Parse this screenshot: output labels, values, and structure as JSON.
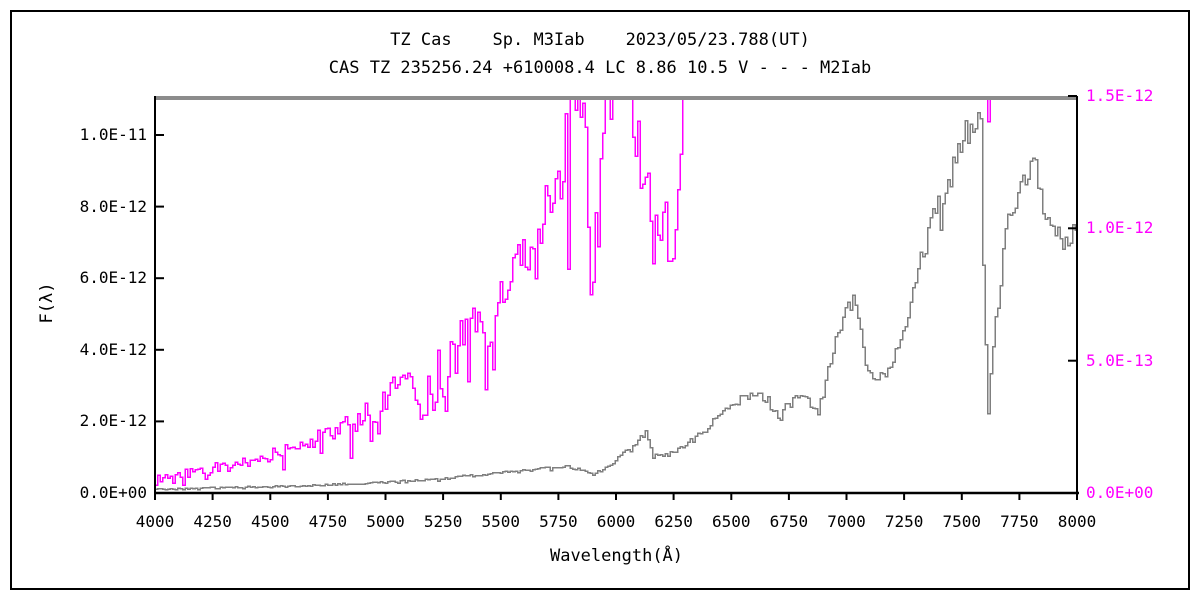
{
  "header": {
    "title": "TZ Cas    Sp. M3Iab    2023/05/23.788(UT)",
    "subtitle": "CAS TZ 235256.24 +610008.4 LC 8.86 10.5 V - - - M2Iab"
  },
  "colors": {
    "background": "#ffffff",
    "frame": "#000000",
    "top_border": "#8c8c8c",
    "axis": "#000000",
    "observed": "#7f7f7f",
    "comparison": "#ff00ff"
  },
  "axes": {
    "x": {
      "title": "Wavelength(Å)",
      "min": 4000,
      "max": 8000,
      "tick_values": [
        4000,
        4250,
        4500,
        4750,
        5000,
        5250,
        5500,
        5750,
        6000,
        6250,
        6500,
        6750,
        7000,
        7250,
        7500,
        7750,
        8000
      ],
      "tick_labels": [
        "4000",
        "4250",
        "4500",
        "4750",
        "5000",
        "5250",
        "5500",
        "5750",
        "6000",
        "6250",
        "6500",
        "6750",
        "7000",
        "7250",
        "7500",
        "7750",
        "8000"
      ]
    },
    "y_left": {
      "title": "F(λ)",
      "tick_values_e12": [
        0,
        2,
        4,
        6,
        8,
        10
      ],
      "tick_labels": [
        "0.0E+00",
        "2.0E-12",
        "4.0E-12",
        "6.0E-12",
        "8.0E-12",
        "1.0E-11"
      ],
      "top_value_e12": 11.09,
      "color": "#000000"
    },
    "y_right": {
      "tick_values_e12": [
        0,
        0.5,
        1.0,
        1.5
      ],
      "tick_labels": [
        "0.0E+00",
        "5.0E-13",
        "1.0E-12",
        "1.5E-12"
      ],
      "top_value_e12": 1.5,
      "color": "#ff00ff"
    }
  },
  "chart_data": {
    "type": "line",
    "title": "TZ Cas Sp. M3Iab 2023/05/23.788(UT)",
    "xlabel": "Wavelength(Å)",
    "ylabel_left": "F(λ) 0 – 1.0E-11",
    "ylabel_right": "F(λ) 0 – 1.5E-12",
    "x_range": [
      4000,
      8000
    ],
    "grid": false,
    "legend": "dashed in subtitle: - - - M2Iab (comparison, magenta, right axis)",
    "series": [
      {
        "name": "TZ Cas observed spectrum",
        "axis": "left",
        "color": "#7f7f7f",
        "stroke_width": 1.5,
        "units": "1e-12 (left axis)",
        "seed": 42,
        "noise_base": 0.015,
        "noise_scale": 0.042,
        "spike_prob": 0.05,
        "spike_mult": 1.5,
        "off_scale_cap": 99,
        "points": [
          [
            4000,
            0.1
          ],
          [
            4060,
            0.11
          ],
          [
            4120,
            0.12
          ],
          [
            4180,
            0.13
          ],
          [
            4240,
            0.14
          ],
          [
            4300,
            0.15
          ],
          [
            4360,
            0.16
          ],
          [
            4420,
            0.17
          ],
          [
            4480,
            0.17
          ],
          [
            4540,
            0.18
          ],
          [
            4600,
            0.19
          ],
          [
            4660,
            0.21
          ],
          [
            4720,
            0.22
          ],
          [
            4780,
            0.24
          ],
          [
            4840,
            0.26
          ],
          [
            4900,
            0.27
          ],
          [
            4960,
            0.29
          ],
          [
            5020,
            0.31
          ],
          [
            5080,
            0.34
          ],
          [
            5140,
            0.36
          ],
          [
            5200,
            0.38
          ],
          [
            5260,
            0.41
          ],
          [
            5320,
            0.45
          ],
          [
            5380,
            0.49
          ],
          [
            5440,
            0.52
          ],
          [
            5500,
            0.56
          ],
          [
            5560,
            0.59
          ],
          [
            5620,
            0.63
          ],
          [
            5680,
            0.67
          ],
          [
            5740,
            0.72
          ],
          [
            5780,
            0.74
          ],
          [
            5830,
            0.66
          ],
          [
            5870,
            0.6
          ],
          [
            5900,
            0.56
          ],
          [
            5930,
            0.62
          ],
          [
            5960,
            0.74
          ],
          [
            6000,
            0.95
          ],
          [
            6040,
            1.15
          ],
          [
            6080,
            1.4
          ],
          [
            6110,
            1.58
          ],
          [
            6130,
            1.68
          ],
          [
            6155,
            1.1
          ],
          [
            6185,
            1.02
          ],
          [
            6215,
            1.06
          ],
          [
            6245,
            1.12
          ],
          [
            6275,
            1.22
          ],
          [
            6305,
            1.38
          ],
          [
            6340,
            1.52
          ],
          [
            6380,
            1.72
          ],
          [
            6420,
            2.0
          ],
          [
            6460,
            2.3
          ],
          [
            6500,
            2.52
          ],
          [
            6540,
            2.62
          ],
          [
            6580,
            2.7
          ],
          [
            6620,
            2.72
          ],
          [
            6660,
            2.58
          ],
          [
            6690,
            2.22
          ],
          [
            6710,
            2.1
          ],
          [
            6730,
            2.38
          ],
          [
            6760,
            2.58
          ],
          [
            6790,
            2.68
          ],
          [
            6820,
            2.62
          ],
          [
            6850,
            2.42
          ],
          [
            6875,
            2.28
          ],
          [
            6905,
            3.0
          ],
          [
            6935,
            3.9
          ],
          [
            6965,
            4.6
          ],
          [
            7000,
            5.1
          ],
          [
            7030,
            5.45
          ],
          [
            7055,
            4.6
          ],
          [
            7080,
            3.6
          ],
          [
            7110,
            3.28
          ],
          [
            7150,
            3.3
          ],
          [
            7190,
            3.55
          ],
          [
            7230,
            4.2
          ],
          [
            7270,
            5.2
          ],
          [
            7310,
            6.3
          ],
          [
            7350,
            7.2
          ],
          [
            7390,
            8.1
          ],
          [
            7430,
            8.6
          ],
          [
            7460,
            9.0
          ],
          [
            7490,
            9.7
          ],
          [
            7520,
            10.05
          ],
          [
            7550,
            10.35
          ],
          [
            7575,
            10.25
          ],
          [
            7588,
            9.6
          ],
          [
            7593,
            1.3
          ],
          [
            7599,
            5.8
          ],
          [
            7605,
            1.75
          ],
          [
            7613,
            2.3
          ],
          [
            7625,
            3.5
          ],
          [
            7645,
            4.8
          ],
          [
            7665,
            5.9
          ],
          [
            7685,
            7.0
          ],
          [
            7705,
            7.8
          ],
          [
            7735,
            8.3
          ],
          [
            7765,
            8.7
          ],
          [
            7795,
            9.25
          ],
          [
            7815,
            9.05
          ],
          [
            7845,
            8.35
          ],
          [
            7875,
            7.7
          ],
          [
            7905,
            7.3
          ],
          [
            7935,
            7.1
          ],
          [
            7965,
            7.2
          ],
          [
            8000,
            7.45
          ]
        ]
      },
      {
        "name": "M2Iab comparison spectrum",
        "axis": "right",
        "color": "#ff00ff",
        "stroke_width": 1.5,
        "units": "1e-12 (right axis)",
        "seed": 1234,
        "noise_base": 0.012,
        "noise_scale": 0.085,
        "spike_prob": 0.09,
        "spike_mult": 2.4,
        "off_scale_cap": 1.55,
        "points": [
          [
            4000,
            0.05
          ],
          [
            4050,
            0.06
          ],
          [
            4100,
            0.07
          ],
          [
            4150,
            0.075
          ],
          [
            4200,
            0.085
          ],
          [
            4250,
            0.095
          ],
          [
            4300,
            0.1
          ],
          [
            4330,
            0.085
          ],
          [
            4360,
            0.11
          ],
          [
            4420,
            0.125
          ],
          [
            4480,
            0.14
          ],
          [
            4540,
            0.155
          ],
          [
            4600,
            0.175
          ],
          [
            4660,
            0.195
          ],
          [
            4720,
            0.215
          ],
          [
            4780,
            0.235
          ],
          [
            4830,
            0.26
          ],
          [
            4860,
            0.245
          ],
          [
            4890,
            0.285
          ],
          [
            4920,
            0.315
          ],
          [
            4950,
            0.27
          ],
          [
            4970,
            0.24
          ],
          [
            4990,
            0.36
          ],
          [
            5020,
            0.42
          ],
          [
            5050,
            0.45
          ],
          [
            5080,
            0.44
          ],
          [
            5110,
            0.41
          ],
          [
            5140,
            0.33
          ],
          [
            5165,
            0.25
          ],
          [
            5185,
            0.42
          ],
          [
            5205,
            0.28
          ],
          [
            5225,
            0.5
          ],
          [
            5255,
            0.27
          ],
          [
            5280,
            0.54
          ],
          [
            5310,
            0.6
          ],
          [
            5340,
            0.59
          ],
          [
            5370,
            0.64
          ],
          [
            5400,
            0.66
          ],
          [
            5430,
            0.61
          ],
          [
            5460,
            0.56
          ],
          [
            5490,
            0.72
          ],
          [
            5520,
            0.78
          ],
          [
            5550,
            0.84
          ],
          [
            5580,
            0.87
          ],
          [
            5610,
            0.91
          ],
          [
            5640,
            0.97
          ],
          [
            5670,
            1.03
          ],
          [
            5700,
            1.08
          ],
          [
            5730,
            1.14
          ],
          [
            5760,
            1.22
          ],
          [
            5790,
            1.38
          ],
          [
            5815,
            1.52
          ],
          [
            5845,
            1.44
          ],
          [
            5868,
            1.3
          ],
          [
            5880,
            1.0
          ],
          [
            5893,
            0.6
          ],
          [
            5905,
            1.0
          ],
          [
            5920,
            1.18
          ],
          [
            5945,
            1.36
          ],
          [
            5970,
            1.52
          ],
          [
            6000,
            1.68
          ],
          [
            6040,
            1.7
          ],
          [
            6070,
            1.48
          ],
          [
            6100,
            1.26
          ],
          [
            6130,
            1.08
          ],
          [
            6160,
            1.22
          ],
          [
            6190,
            0.96
          ],
          [
            6215,
            1.18
          ],
          [
            6245,
            0.84
          ],
          [
            6270,
            1.26
          ],
          [
            6300,
            1.56
          ],
          [
            6330,
            1.84
          ],
          [
            6370,
            2.0
          ],
          [
            6500,
            2.0
          ],
          [
            6800,
            2.0
          ],
          [
            7100,
            2.0
          ],
          [
            7400,
            2.0
          ],
          [
            7588,
            2.0
          ],
          [
            7598,
            1.9
          ],
          [
            7604,
            1.2
          ],
          [
            7610,
            1.12
          ],
          [
            7617,
            1.9
          ],
          [
            7630,
            2.0
          ],
          [
            7800,
            2.0
          ],
          [
            8000,
            2.0
          ]
        ]
      }
    ]
  }
}
